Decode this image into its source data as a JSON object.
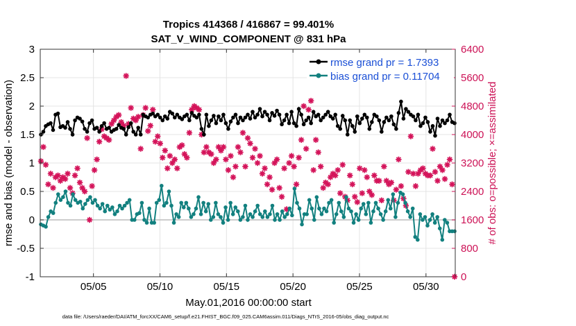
{
  "chart_data": {
    "type": "line",
    "title": "Tropics 414368 / 416867 = 99.401%",
    "subtitle": "SAT_V_WIND_COMPONENT @ 831 hPa",
    "xlabel": "May.01,2016 00:00:00 start",
    "ylabel": "rmse and bias (model - observation)",
    "ylabel_right": "# of obs: o=possible; ×=assimilated",
    "xlim": [
      1,
      32.2
    ],
    "ylim": [
      -1,
      3
    ],
    "ylim_right": [
      0,
      6400
    ],
    "xticks": [
      5,
      10,
      15,
      20,
      25,
      30
    ],
    "xtick_labels": [
      "05/05",
      "05/10",
      "05/15",
      "05/20",
      "05/25",
      "05/30"
    ],
    "yticks": [
      -1,
      -0.5,
      0,
      0.5,
      1,
      1.5,
      2,
      2.5,
      3
    ],
    "ytick_labels": [
      "-1",
      "-0.5",
      "0",
      "0.5",
      "1",
      "1.5",
      "2",
      "2.5",
      "3"
    ],
    "yticks_right": [
      0,
      800,
      1600,
      2400,
      3200,
      4000,
      4800,
      5600,
      6400
    ],
    "ytick_labels_right": [
      "0",
      "800",
      "1600",
      "2400",
      "3200",
      "4000",
      "4800",
      "5600",
      "6400"
    ],
    "grid": true,
    "legend_position": "top-right",
    "colors": {
      "rmse": "#000000",
      "bias": "#12807f",
      "obs": "#d4145a",
      "right_axis": "#cc1155",
      "legend_text": "#1a4fd6",
      "zero_line": "#bbbbbb"
    },
    "series": [
      {
        "name": "rmse grand pr = 1.7393",
        "axis": "left",
        "values": [
          1.5,
          1.55,
          1.65,
          1.68,
          1.7,
          1.58,
          1.85,
          1.87,
          1.63,
          1.65,
          1.62,
          1.72,
          1.6,
          1.5,
          1.75,
          1.8,
          1.78,
          1.73,
          1.6,
          1.55,
          1.7,
          1.75,
          1.6,
          1.62,
          1.55,
          1.65,
          1.7,
          1.6,
          1.62,
          1.55,
          1.58,
          1.6,
          1.67,
          1.62,
          1.6,
          1.5,
          1.63,
          1.7,
          1.55,
          1.5,
          1.62,
          1.5,
          1.85,
          1.82,
          1.8,
          1.85,
          1.87,
          1.82,
          1.85,
          1.8,
          1.75,
          1.82,
          1.78,
          1.9,
          1.87,
          1.8,
          1.85,
          1.8,
          1.77,
          1.82,
          1.85,
          1.75,
          1.88,
          1.83,
          1.8,
          1.85,
          1.6,
          1.5,
          1.85,
          1.65,
          1.75,
          1.83,
          1.7,
          1.82,
          1.75,
          1.85,
          1.7,
          1.6,
          1.73,
          1.8,
          1.85,
          1.7,
          1.8,
          1.75,
          1.8,
          1.85,
          1.78,
          1.9,
          1.8,
          1.85,
          1.95,
          1.82,
          1.9,
          1.85,
          1.75,
          1.88,
          1.83,
          1.92,
          1.85,
          1.68,
          1.75,
          1.85,
          1.7,
          1.9,
          1.7,
          1.65,
          1.95,
          1.85,
          1.68,
          1.75,
          1.8,
          1.7,
          1.9,
          1.82,
          1.85,
          1.75,
          1.8,
          1.85,
          1.9,
          1.82,
          1.78,
          1.85,
          1.65,
          1.6,
          1.83,
          1.75,
          1.5,
          1.75,
          1.65,
          1.55,
          1.82,
          1.7,
          1.78,
          1.85,
          1.8,
          1.6,
          1.72,
          1.85,
          1.82,
          1.75,
          1.55,
          1.72,
          1.8,
          1.75,
          1.82,
          1.68,
          1.6,
          1.88,
          2.08,
          1.78,
          1.95,
          1.9,
          1.85,
          1.82,
          1.75,
          1.85,
          1.65,
          1.7,
          1.8,
          1.72,
          1.55,
          1.65,
          1.48,
          1.78,
          1.65,
          1.75,
          1.7,
          1.75,
          1.85,
          1.72,
          1.7
        ]
      },
      {
        "name": "bias grand pr = 0.11704",
        "axis": "left",
        "values": [
          -0.08,
          -0.1,
          -0.12,
          0.05,
          0.15,
          0.12,
          0.3,
          0.45,
          0.35,
          0.4,
          0.5,
          0.3,
          0.25,
          0.45,
          0.35,
          0.3,
          0.32,
          0.2,
          0.28,
          0.35,
          0.4,
          0.3,
          0.35,
          0.25,
          0.2,
          0.28,
          0.15,
          0.25,
          0.18,
          0.22,
          0.1,
          0.15,
          0.25,
          0.2,
          0.25,
          0.3,
          0.35,
          0.0,
          0.0,
          0.1,
          0.12,
          0.3,
          0.0,
          -0.05,
          0.2,
          -0.05,
          -0.05,
          0.3,
          0.35,
          0.6,
          0.25,
          0.3,
          0.5,
          0.25,
          -0.05,
          0.1,
          0.05,
          0.3,
          0.22,
          0.3,
          0.2,
          0.05,
          0.1,
          0.2,
          0.4,
          0.1,
          0.3,
          0.15,
          0.28,
          0.0,
          0.05,
          0.3,
          0.1,
          0.05,
          -0.05,
          0.22,
          0.0,
          0.3,
          0.1,
          0.22,
          0.15,
          0.0,
          0.05,
          0.25,
          0.0,
          0.1,
          0.05,
          0.15,
          0.25,
          0.1,
          0.05,
          0.15,
          0.05,
          0.1,
          0.25,
          0.0,
          0.1,
          0.0,
          0.15,
          0.05,
          0.1,
          0.2,
          0.08,
          0.55,
          0.3,
          0.2,
          -0.08,
          0.1,
          0.1,
          0.35,
          0.2,
          0.0,
          0.4,
          0.2,
          0.1,
          0.2,
          0.15,
          0.3,
          0.35,
          -0.05,
          0.1,
          0.3,
          0.15,
          0.05,
          0.4,
          0.2,
          0.15,
          -0.05,
          0.1,
          0.0,
          0.2,
          0.28,
          0.1,
          0.3,
          -0.05,
          0.15,
          0.3,
          0.2,
          0.1,
          0.0,
          0.15,
          0.35,
          0.2,
          0.45,
          0.05,
          0.3,
          0.48,
          0.45,
          0.3,
          0.15,
          0.05,
          0.2,
          -0.3,
          -0.35,
          0.1,
          0.0,
          0.05,
          -0.1,
          0.0,
          0.1,
          -0.05,
          0.05,
          -0.15,
          -0.35,
          0.0,
          -0.05,
          -0.2,
          -0.2,
          -0.2
        ]
      },
      {
        "name": "# of obs assimilated",
        "axis": "right",
        "values": [
          3250,
          3650,
          3150,
          2600,
          2900,
          2500,
          2800,
          2850,
          2700,
          2800,
          2750,
          2900,
          2500,
          2350,
          2850,
          3050,
          2650,
          2500,
          2400,
          3900,
          1600,
          2550,
          3000,
          3300,
          3800,
          4150,
          3950,
          3900,
          3850,
          4300,
          4400,
          4500,
          4550,
          4350,
          4250,
          5650,
          4300,
          4750,
          4450,
          4400,
          4500,
          3600,
          4550,
          4750,
          4100,
          4250,
          4700,
          3800,
          3950,
          3750,
          3350,
          3550,
          3050,
          3400,
          3200,
          3300,
          3050,
          3650,
          3700,
          3450,
          3350,
          4050,
          4700,
          4800,
          4750,
          4700,
          4000,
          3500,
          3650,
          3500,
          3450,
          3200,
          3300,
          3650,
          3550,
          3650,
          3300,
          3000,
          3400,
          2800,
          3100,
          3650,
          3500,
          4050,
          3100,
          3900,
          3750,
          3350,
          3600,
          3200,
          3400,
          2900,
          3050,
          2600,
          2800,
          2450,
          3200,
          3300,
          2500,
          2250,
          3050,
          1900,
          3200,
          3400,
          3100,
          2600,
          3350,
          3850,
          4800,
          3600,
          4700,
          4950,
          3000,
          3850,
          3500,
          3100,
          2500,
          2650,
          2600,
          2800,
          2900,
          2850,
          3000,
          2350,
          3150,
          2250,
          2150,
          2850,
          2600,
          2250,
          2100,
          3050,
          2350,
          3000,
          2800,
          2400,
          2300,
          2850,
          2700,
          2700,
          2150,
          3100,
          2700,
          2600,
          2650,
          2150,
          2450,
          3300,
          2550,
          2200,
          2000,
          2950,
          3950,
          2900,
          2550,
          2900,
          3000,
          3050,
          2900,
          2850,
          2850,
          3600,
          2950,
          2700,
          3100,
          3000,
          2750,
          3150,
          3300,
          2600,
          0
        ]
      }
    ]
  },
  "footer": "data file: /Users/raeder/DAI/ATM_forcXX/CAM6_setup/f.e21.FHIST_BGC.f09_025.CAM6assim.011/Diags_NTrS_2016-05/obs_diag_output.nc"
}
